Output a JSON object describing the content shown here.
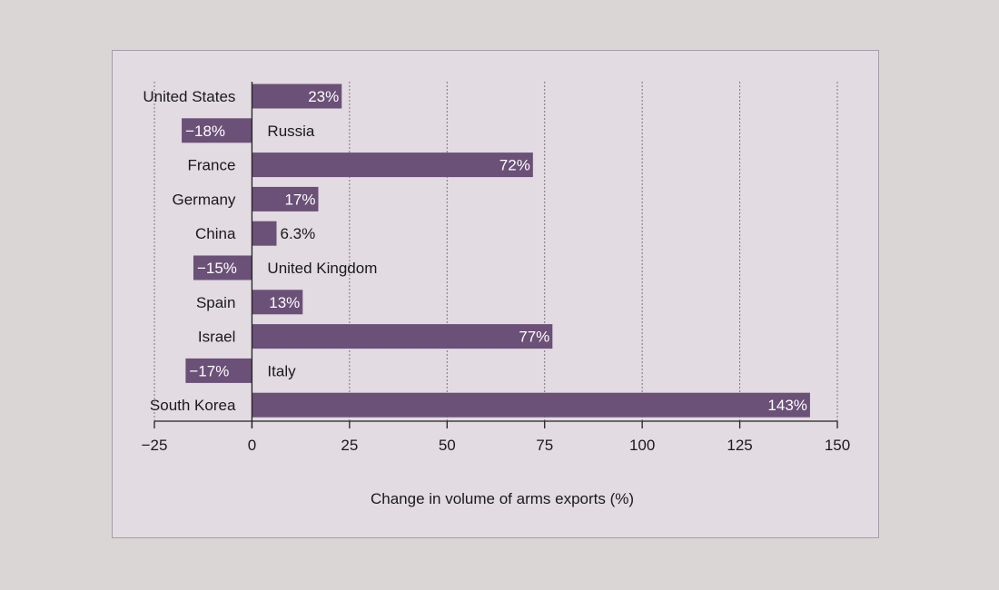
{
  "colors": {
    "page_background": "#dbd6d6",
    "panel_background": "#e2dbe2",
    "bar": "#6b5077",
    "grid": "#7a7a7a"
  },
  "chart_data": {
    "type": "bar",
    "orientation": "horizontal",
    "categories": [
      "United States",
      "Russia",
      "France",
      "Germany",
      "China",
      "United Kingdom",
      "Spain",
      "Israel",
      "Italy",
      "South Korea"
    ],
    "values": [
      23,
      -18,
      72,
      17,
      6.3,
      -15,
      13,
      77,
      -17,
      143
    ],
    "value_labels": [
      "23%",
      "−18%",
      "72%",
      "17%",
      "6.3%",
      "−15%",
      "13%",
      "77%",
      "−17%",
      "143%"
    ],
    "xlabel": "Change in volume of arms exports (%)",
    "ylabel": "",
    "title": "",
    "xlim": [
      -25,
      150
    ],
    "xticks": [
      -25,
      0,
      25,
      50,
      75,
      100,
      125,
      150
    ],
    "xtick_labels": [
      "−25",
      "0",
      "25",
      "50",
      "75",
      "100",
      "125",
      "150"
    ],
    "grid": "vertical dashed",
    "legend": "none"
  }
}
